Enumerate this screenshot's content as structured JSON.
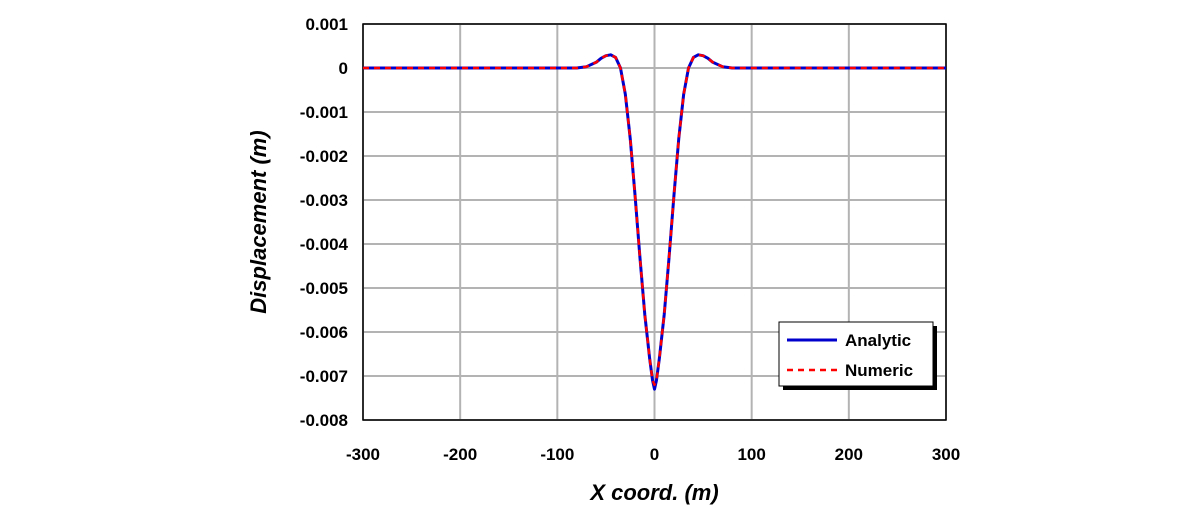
{
  "chart_data": {
    "type": "line",
    "title": "",
    "xlabel": "X coord. (m)",
    "ylabel": "Displacement (m)",
    "xlim": [
      -300,
      300
    ],
    "ylim": [
      -0.008,
      0.001
    ],
    "xticks": [
      -300,
      -200,
      -100,
      0,
      100,
      200,
      300
    ],
    "xtick_labels": [
      "-300",
      "-200",
      "-100",
      "0",
      "100",
      "200",
      "300"
    ],
    "yticks": [
      0.001,
      0,
      -0.001,
      -0.002,
      -0.003,
      -0.004,
      -0.005,
      -0.006,
      -0.007,
      -0.008
    ],
    "ytick_labels": [
      "0.001",
      "0",
      "-0.001",
      "-0.002",
      "-0.003",
      "-0.004",
      "-0.005",
      "-0.006",
      "-0.007",
      "-0.008"
    ],
    "grid": true,
    "legend_position": "bottom-right",
    "series": [
      {
        "name": "Analytic",
        "color": "#0000cc",
        "style": "solid",
        "x": [
          -300,
          -100,
          -80,
          -70,
          -60,
          -55,
          -50,
          -45,
          -40,
          -35,
          -30,
          -25,
          -20,
          -15,
          -10,
          -5,
          -2,
          0,
          2,
          5,
          10,
          15,
          20,
          25,
          30,
          35,
          40,
          45,
          50,
          55,
          60,
          70,
          80,
          100,
          300
        ],
        "y": [
          0,
          0,
          0,
          3e-05,
          0.00013,
          0.00022,
          0.00028,
          0.0003,
          0.00024,
          0,
          -0.0006,
          -0.0016,
          -0.0029,
          -0.0043,
          -0.0056,
          -0.0066,
          -0.0071,
          -0.0073,
          -0.0071,
          -0.0066,
          -0.0056,
          -0.0043,
          -0.0029,
          -0.0016,
          -0.0006,
          0,
          0.00024,
          0.0003,
          0.00028,
          0.00022,
          0.00013,
          3e-05,
          0,
          0,
          0
        ]
      },
      {
        "name": "Numeric",
        "color": "#ff0000",
        "style": "dashed",
        "x": [
          -300,
          -100,
          -80,
          -70,
          -60,
          -55,
          -50,
          -45,
          -40,
          -35,
          -30,
          -25,
          -20,
          -15,
          -10,
          -5,
          -2,
          0,
          2,
          5,
          10,
          15,
          20,
          25,
          30,
          35,
          40,
          45,
          50,
          55,
          60,
          70,
          80,
          100,
          300
        ],
        "y": [
          0,
          0,
          0,
          3e-05,
          0.00013,
          0.00022,
          0.00028,
          0.0003,
          0.00024,
          0,
          -0.0006,
          -0.0016,
          -0.0029,
          -0.0043,
          -0.0056,
          -0.0066,
          -0.0071,
          -0.0072,
          -0.0071,
          -0.0066,
          -0.0056,
          -0.0043,
          -0.0029,
          -0.0016,
          -0.0006,
          0,
          0.00024,
          0.0003,
          0.00028,
          0.00022,
          0.00013,
          3e-05,
          0,
          0,
          0
        ]
      }
    ]
  }
}
